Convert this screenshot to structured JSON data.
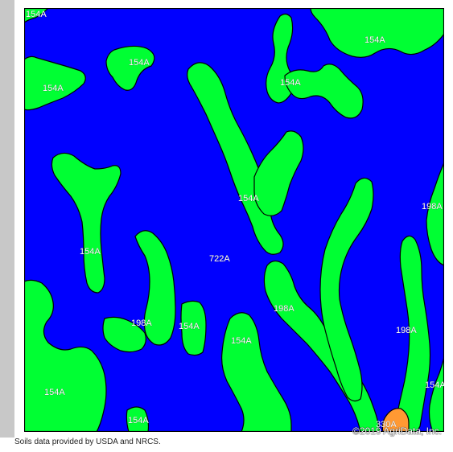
{
  "map": {
    "unit_colors": {
      "722A": "#0000ff",
      "154A": "#00ff33",
      "198A": "#00ff33",
      "330A": "#ff9933"
    },
    "border_color": "#000000",
    "labels": {
      "corner_154a": "154A",
      "top_center_154a": "154A",
      "top_right_154a": "154A",
      "left_154a": "154A",
      "center_right_154a": "154A",
      "center_154a": "154A",
      "left_mid_154a": "154A",
      "center_722a": "722A",
      "right_198a_top": "198A",
      "center_198a": "198A",
      "left_198a": "198A",
      "small_154a": "154A",
      "lower_center_154a": "154A",
      "right_198a_low": "198A",
      "right_154a_low": "154A",
      "bottom_left_154a": "154A",
      "bottom_154a": "154A",
      "bottom_330a": "330A"
    }
  },
  "footer": {
    "copyright": "©2019 AgriData, Inc.",
    "source_note": "Soils data provided by USDA and NRCS."
  }
}
